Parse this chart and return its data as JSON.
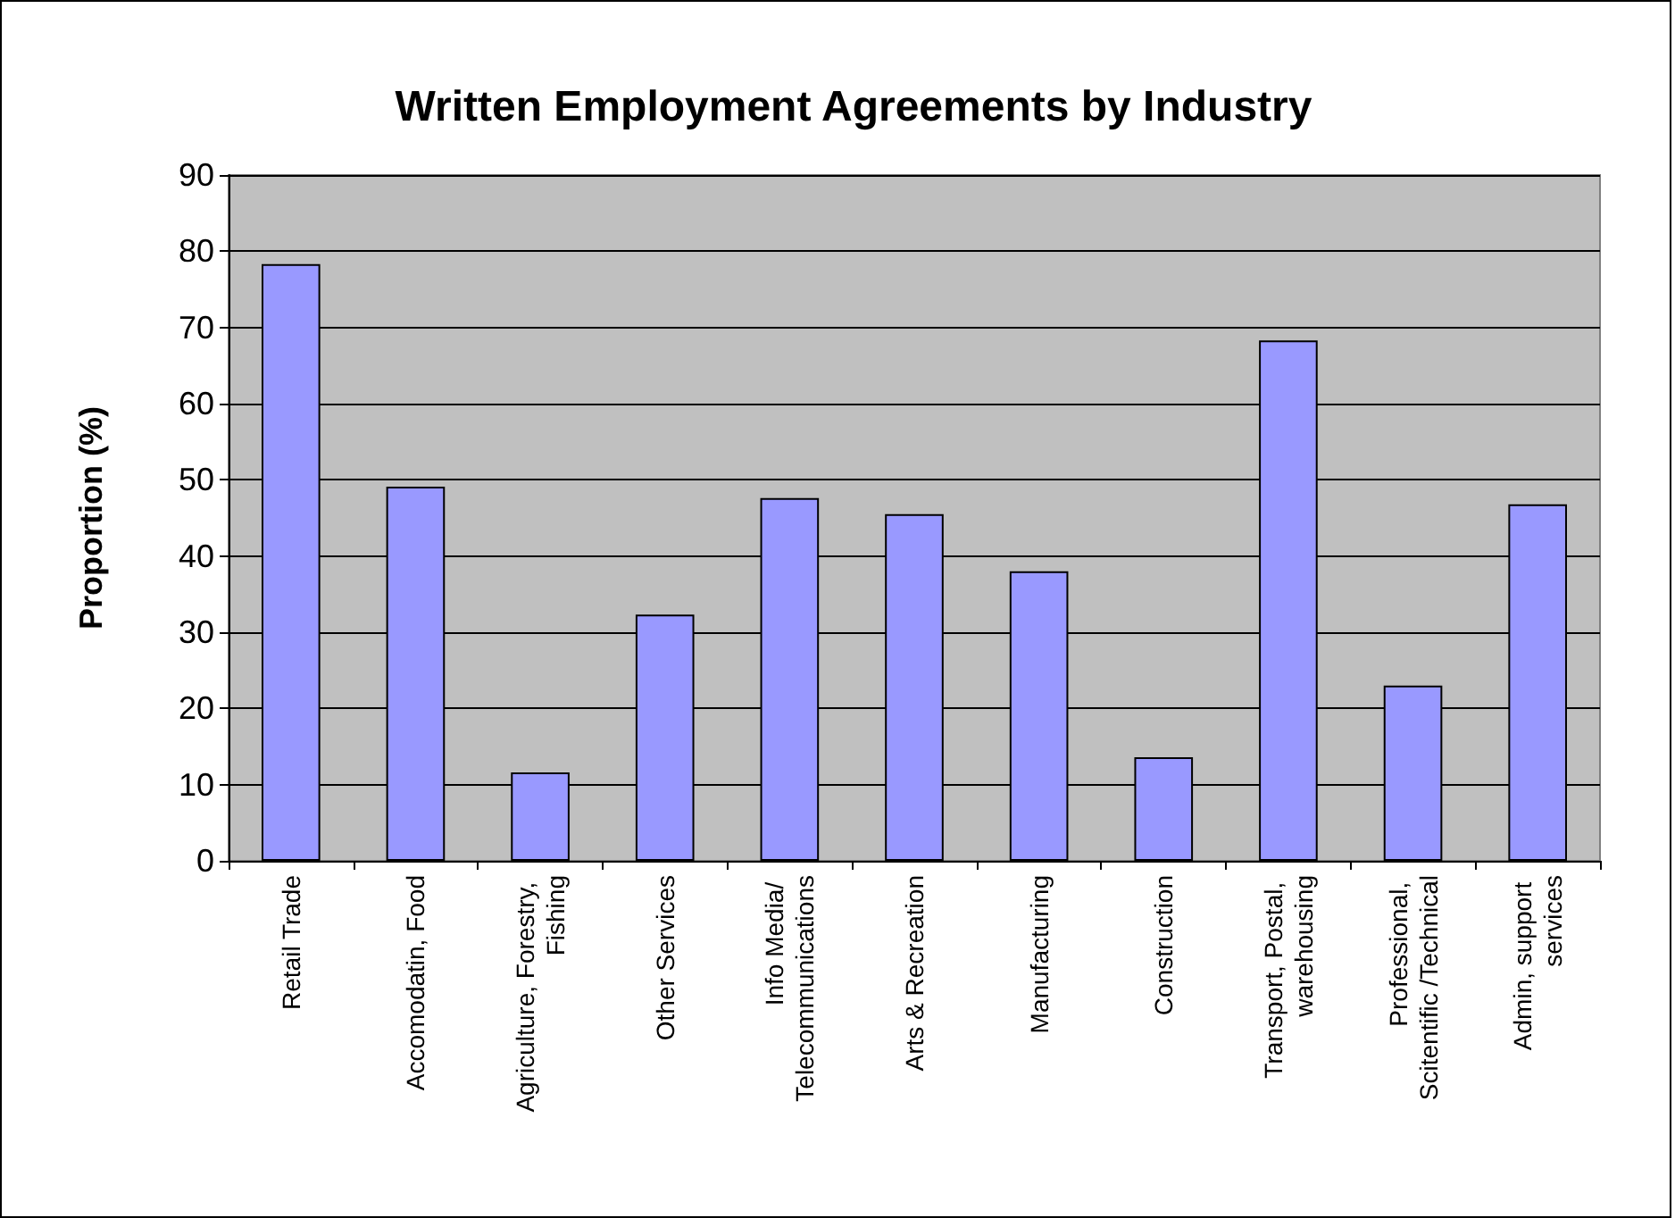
{
  "chart_data": {
    "type": "bar",
    "title": "Written Employment Agreements by Industry",
    "ylabel": "Proportion (%)",
    "categories": [
      "Retail Trade",
      "Accomodatin, Food",
      "Agriculture, Forestry, Fishing",
      "Other Services",
      "Info Media/ Telecommunications",
      "Arts & Recreation",
      "Manufacturing",
      "Construction",
      "Transport, Postal, warehousing",
      "Professional, Scitentific /Technical",
      "Admin, support services"
    ],
    "values": [
      78.3,
      49.1,
      11.6,
      32.3,
      47.6,
      45.5,
      38.0,
      13.6,
      68.3,
      23.0,
      46.8
    ],
    "color": "#9999ff",
    "ylim": [
      0,
      90
    ],
    "yticks": [
      0,
      10,
      20,
      30,
      40,
      50,
      60,
      70,
      80,
      90
    ],
    "grid": "y"
  }
}
